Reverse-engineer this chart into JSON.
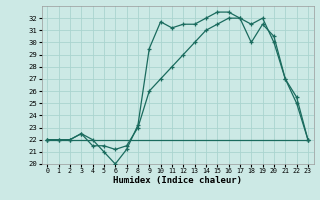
{
  "xlabel": "Humidex (Indice chaleur)",
  "xlim": [
    -0.5,
    23.5
  ],
  "ylim": [
    20,
    33
  ],
  "yticks": [
    20,
    21,
    22,
    23,
    24,
    25,
    26,
    27,
    28,
    29,
    30,
    31,
    32
  ],
  "xticks": [
    0,
    1,
    2,
    3,
    4,
    5,
    6,
    7,
    8,
    9,
    10,
    11,
    12,
    13,
    14,
    15,
    16,
    17,
    18,
    19,
    20,
    21,
    22,
    23
  ],
  "bg_color": "#cce9e5",
  "grid_color": "#aad4cf",
  "line_color": "#1a6b5e",
  "series1_x": [
    0,
    1,
    2,
    3,
    4,
    5,
    6,
    7,
    8,
    9,
    10,
    11,
    12,
    13,
    14,
    15,
    16,
    17,
    18,
    19,
    20,
    21,
    22,
    23
  ],
  "series1_y": [
    22,
    22,
    22,
    22.5,
    22,
    21,
    20,
    21.2,
    23.2,
    29.5,
    31.7,
    31.2,
    31.5,
    31.5,
    32,
    32.5,
    32.5,
    32,
    31.5,
    32,
    30,
    27,
    25,
    22
  ],
  "series2_x": [
    0,
    1,
    2,
    3,
    4,
    5,
    6,
    7,
    8,
    9,
    10,
    11,
    12,
    13,
    14,
    15,
    16,
    17,
    18,
    19,
    20,
    21,
    22,
    23
  ],
  "series2_y": [
    22,
    22,
    22,
    22.5,
    21.5,
    21.5,
    21.2,
    21.5,
    23,
    26,
    27,
    28,
    29,
    30,
    31,
    31.5,
    32,
    32,
    30,
    31.5,
    30.5,
    27,
    25.5,
    22
  ],
  "series3_x": [
    0,
    23
  ],
  "series3_y": [
    22,
    22
  ]
}
